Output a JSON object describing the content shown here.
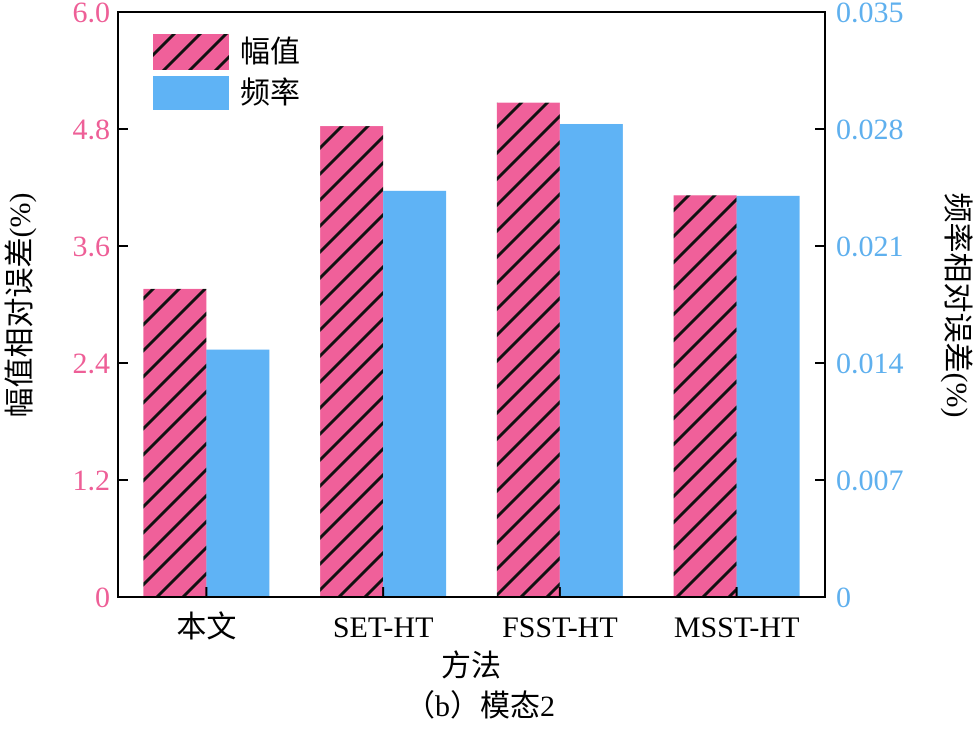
{
  "chart_data": {
    "type": "bar",
    "caption": "（b）模态2",
    "xlabel": "方法",
    "ylabel_left": "幅值相对误差(%)",
    "ylabel_right": "频率相对误差(%)",
    "categories": [
      "本文",
      "SET-HT",
      "FSST-HT",
      "MSST-HT"
    ],
    "ylim_left": [
      0,
      6.0
    ],
    "ylim_right": [
      0,
      0.035
    ],
    "yticks_left": [
      "0",
      "1.2",
      "2.4",
      "3.6",
      "4.8",
      "6.0"
    ],
    "yticks_right": [
      "0",
      "0.007",
      "0.014",
      "0.021",
      "0.028",
      "0.035"
    ],
    "grid": false,
    "legend_position": "top-left",
    "series": [
      {
        "name": "幅值",
        "axis": "left",
        "color": "#f0609a",
        "pattern": "hatched",
        "values": [
          3.16,
          4.83,
          5.07,
          4.12
        ]
      },
      {
        "name": "频率",
        "axis": "right",
        "color": "#5fb3f5",
        "pattern": "solid",
        "values": [
          0.0148,
          0.0243,
          0.0283,
          0.024
        ]
      }
    ],
    "left_axis_color": "#ee5f97",
    "right_axis_color": "#5fb0ee"
  }
}
